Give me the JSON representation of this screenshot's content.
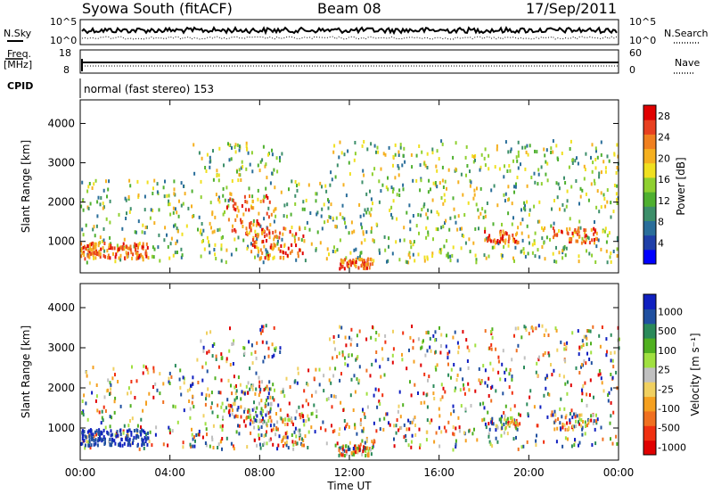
{
  "header": {
    "station": "Syowa South (fitACF)",
    "beam": "Beam 08",
    "date": "17/Sep/2011"
  },
  "panels": {
    "nsky_label": "N.Sky",
    "nsky_top": "10^5",
    "nsky_bottom": "10^0",
    "nsearch_label": "N.Search",
    "nsearch_top": "10^5",
    "nsearch_bottom": "10^0",
    "freq_label": "Freq.",
    "freq_unit": "[MHz]",
    "freq_top": "18",
    "freq_bottom": "8",
    "nave_label": "Nave",
    "nave_top": "60",
    "nave_bottom": "0",
    "cpid_label": "CPID",
    "cpid_text": "normal (fast stereo) 153"
  },
  "colors": {
    "power": [
      "#0000ff",
      "#1f3fa8",
      "#2a6e9a",
      "#3d8f6a",
      "#4fb030",
      "#8fd030",
      "#f0e020",
      "#f5b020",
      "#f08020",
      "#e84020",
      "#e00000"
    ],
    "velocity": [
      "#e00000",
      "#f03010",
      "#f07020",
      "#f5a020",
      "#f0d060",
      "#c0c0c0",
      "#a0e040",
      "#50b020",
      "#2a8a5a",
      "#2050a0",
      "#1020c0"
    ]
  },
  "chart_data": [
    {
      "type": "heatmap",
      "title": "Power",
      "ylabel": "Slant Range [km]",
      "xlabel": "Time UT",
      "x_ticks": [
        "00:00",
        "04:00",
        "08:00",
        "12:00",
        "16:00",
        "20:00",
        "00:00"
      ],
      "xlim_hours": [
        0,
        24
      ],
      "ylim": [
        200,
        4600
      ],
      "y_ticks": [
        "1000",
        "2000",
        "3000",
        "4000"
      ],
      "colorbar_title": "Power [dB]",
      "colorbar_ticks": [
        "4",
        "8",
        "12",
        "16",
        "20",
        "24",
        "28"
      ],
      "colorbar_range": [
        0,
        30
      ]
    },
    {
      "type": "heatmap",
      "title": "Velocity",
      "ylabel": "Slant Range [km]",
      "xlabel": "Time UT",
      "x_ticks": [
        "00:00",
        "04:00",
        "08:00",
        "12:00",
        "16:00",
        "20:00",
        "00:00"
      ],
      "xlim_hours": [
        0,
        24
      ],
      "ylim": [
        200,
        4600
      ],
      "y_ticks": [
        "1000",
        "2000",
        "3000",
        "4000"
      ],
      "colorbar_title": "Velocity [m s⁻¹]",
      "colorbar_ticks": [
        "1000",
        "500",
        "100",
        "25",
        "-25",
        "-100",
        "-500",
        "-1000"
      ]
    }
  ]
}
